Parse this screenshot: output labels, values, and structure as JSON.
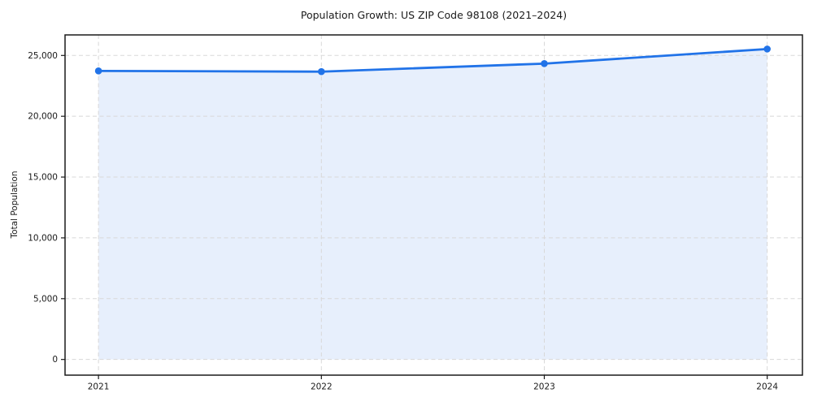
{
  "chart_data": {
    "type": "area",
    "title": "Population Growth: US ZIP Code 98108 (2021–2024)",
    "xlabel": "",
    "ylabel": "Total Population",
    "categories": [
      "2021",
      "2022",
      "2023",
      "2024"
    ],
    "x": [
      2021,
      2022,
      2023,
      2024
    ],
    "series": [
      {
        "name": "Total Population",
        "values": [
          23730,
          23670,
          24330,
          25530
        ]
      }
    ],
    "xlim": [
      2020.85,
      2024.158
    ],
    "ylim": [
      -1290,
      26690
    ],
    "yticks": {
      "values": [
        0,
        5000,
        10000,
        15000,
        20000,
        25000
      ],
      "labels": [
        "0",
        "5,000",
        "10,000",
        "15,000",
        "20,000",
        "25,000"
      ]
    },
    "grid": true,
    "grid_style": "dashed",
    "legend": "none",
    "colors": {
      "line": "#2173e8",
      "marker": "#2173e8",
      "fill": "#e7effc",
      "grid": "#d8d8d8",
      "spine": "#1a1a1a",
      "text": "#1a1a1a",
      "background": "#ffffff"
    }
  }
}
